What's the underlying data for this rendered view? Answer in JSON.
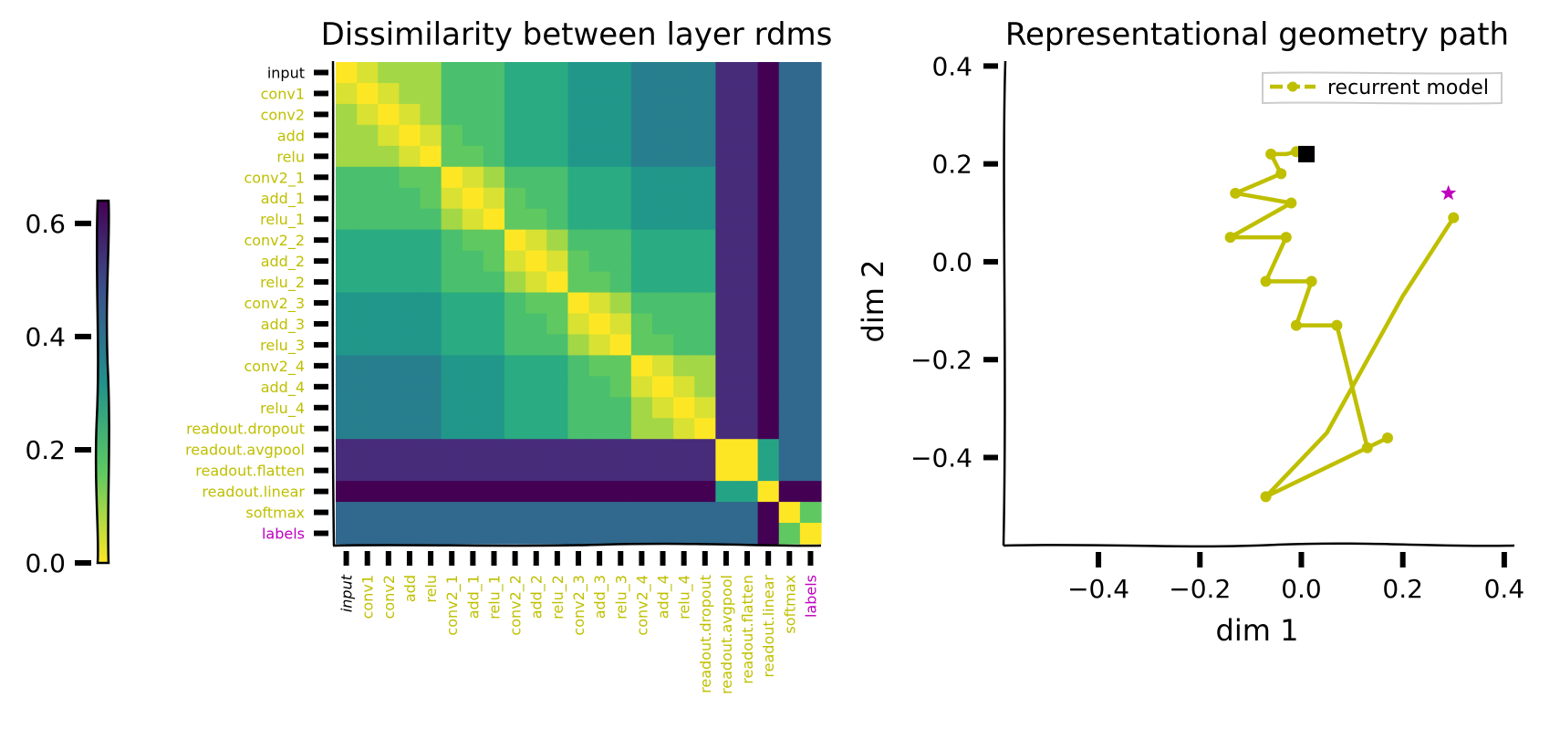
{
  "chart_data": [
    {
      "type": "heatmap",
      "title": "Dissimilarity between layer rdms",
      "labels": [
        "input",
        "conv1",
        "conv2",
        "add",
        "relu",
        "conv2_1",
        "add_1",
        "relu_1",
        "conv2_2",
        "add_2",
        "relu_2",
        "conv2_3",
        "add_3",
        "relu_3",
        "conv2_4",
        "add_4",
        "relu_4",
        "readout.dropout",
        "readout.avgpool",
        "readout.flatten",
        "readout.linear",
        "softmax",
        "labels"
      ],
      "label_colors": [
        "#000000",
        "#bfbf00",
        "#bfbf00",
        "#bfbf00",
        "#bfbf00",
        "#bfbf00",
        "#bfbf00",
        "#bfbf00",
        "#bfbf00",
        "#bfbf00",
        "#bfbf00",
        "#bfbf00",
        "#bfbf00",
        "#bfbf00",
        "#bfbf00",
        "#bfbf00",
        "#bfbf00",
        "#bfbf00",
        "#bfbf00",
        "#bfbf00",
        "#bfbf00",
        "#bfbf00",
        "#bf00bf"
      ],
      "colormap": "viridis_r",
      "vmin": 0.0,
      "vmax": 0.64,
      "colorbar_ticks": [
        "0.0",
        "0.2",
        "0.4",
        "0.6"
      ],
      "colorbar_tick_values": [
        0.0,
        0.2,
        0.4,
        0.6
      ],
      "group_values": {
        "A": 0.06,
        "B": 0.1,
        "C": 0.13,
        "D": 0.2,
        "E": 0.26,
        "F": 0.33,
        "G": 0.36,
        "avgpool_row": 0.55,
        "linear_row": 0.64,
        "labels_col_2": 0.4,
        "avgpool_flatten": 0.0,
        "linear_pair": 0.22,
        "softmax_labels": 0.1
      }
    },
    {
      "type": "line",
      "title": "Representational geometry path",
      "xlabel": "dim 1",
      "ylabel": "dim 2",
      "xlim": [
        -0.58,
        0.42
      ],
      "ylim": [
        -0.58,
        0.41
      ],
      "x_ticks": [
        -0.4,
        -0.2,
        0.0,
        0.2,
        0.4
      ],
      "x_tick_labels": [
        "−0.4",
        "−0.2",
        "0.0",
        "0.2",
        "0.4"
      ],
      "y_ticks": [
        0.4,
        0.2,
        0.0,
        -0.2,
        -0.4
      ],
      "y_tick_labels": [
        "0.4",
        "0.2",
        "0.0",
        "−0.2",
        "−0.4"
      ],
      "legend": "recurrent model",
      "legend_position": "top-right",
      "line_color": "#bfbf00",
      "series": [
        {
          "name": "recurrent model",
          "x": [
            0.3,
            0.2,
            0.05,
            -0.07,
            0.17,
            0.13,
            0.07,
            -0.01,
            0.02,
            -0.07,
            -0.03,
            -0.14,
            -0.02,
            -0.13,
            -0.04,
            -0.06,
            -0.03,
            -0.01
          ],
          "y": [
            0.09,
            -0.07,
            -0.35,
            -0.48,
            -0.36,
            -0.38,
            -0.13,
            -0.13,
            -0.04,
            -0.04,
            0.05,
            0.05,
            0.12,
            0.14,
            0.18,
            0.22,
            0.22,
            0.225
          ],
          "markers": [
            true,
            false,
            false,
            true,
            true,
            true,
            true,
            true,
            true,
            true,
            true,
            true,
            true,
            true,
            true,
            true,
            false,
            true
          ]
        }
      ],
      "start_marker": {
        "x": 0.29,
        "y": 0.14,
        "shape": "star",
        "color": "#bf00bf"
      },
      "end_marker": {
        "x": 0.01,
        "y": 0.22,
        "shape": "square",
        "color": "#000000"
      }
    }
  ]
}
